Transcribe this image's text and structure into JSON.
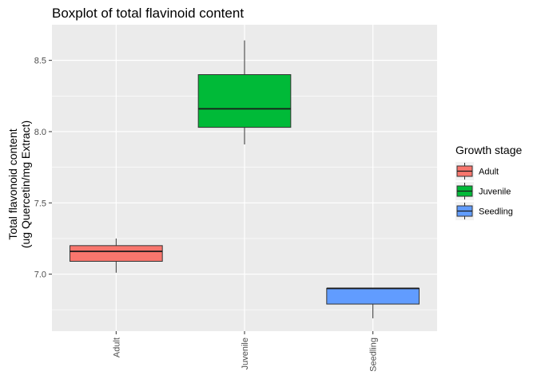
{
  "chart_data": {
    "type": "boxplot",
    "title": "Boxplot of total flavinoid content",
    "xlabel": "",
    "ylabel_lines": [
      "Total flavonoid content",
      "(ug Quercetin/mg Extract)"
    ],
    "ylim": [
      6.6,
      8.75
    ],
    "yticks": [
      7.0,
      7.5,
      8.0,
      8.5
    ],
    "ytick_labels": [
      "7.0",
      "7.5",
      "8.0",
      "8.5"
    ],
    "categories": [
      "Adult",
      "Juvenile",
      "Seedling"
    ],
    "boxes": [
      {
        "category": "Adult",
        "min": 7.01,
        "q1": 7.09,
        "median": 7.16,
        "q3": 7.2,
        "max": 7.25,
        "color": "#F8766D"
      },
      {
        "category": "Juvenile",
        "min": 7.91,
        "q1": 8.03,
        "median": 8.16,
        "q3": 8.4,
        "max": 8.64,
        "color": "#00BA38"
      },
      {
        "category": "Seedling",
        "min": 6.69,
        "q1": 6.79,
        "median": 6.9,
        "q3": 6.9,
        "max": 6.9,
        "color": "#619CFF"
      }
    ],
    "grid": true,
    "panel_background": "#EBEBEB",
    "legend": {
      "title": "Growth stage",
      "position": "right",
      "entries": [
        "Adult",
        "Juvenile",
        "Seedling"
      ]
    }
  }
}
